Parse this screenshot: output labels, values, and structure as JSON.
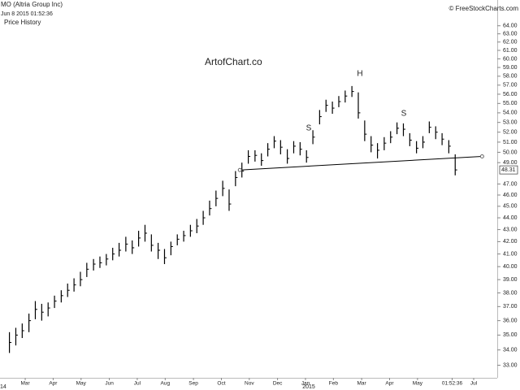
{
  "chart_data": {
    "type": "ohlc",
    "title": "MO (Altria Group Inc)",
    "subtitle": "Jun 8 2015 01:52:36",
    "panel_label": "Price History",
    "source": "© FreeStockCharts.com",
    "watermark": "ArtofChart.co",
    "annotations": [
      "S",
      "H",
      "S"
    ],
    "year_labels": [
      "14",
      "2015"
    ],
    "log_scale": true,
    "color": "#000000",
    "x": [
      2014.12,
      2014.139,
      2014.158,
      2014.178,
      2014.197,
      2014.216,
      2014.235,
      2014.254,
      2014.274,
      2014.293,
      2014.312,
      2014.331,
      2014.35,
      2014.37,
      2014.389,
      2014.408,
      2014.427,
      2014.446,
      2014.466,
      2014.485,
      2014.504,
      2014.523,
      2014.542,
      2014.562,
      2014.581,
      2014.6,
      2014.619,
      2014.638,
      2014.658,
      2014.677,
      2014.696,
      2014.715,
      2014.734,
      2014.754,
      2014.773,
      2014.792,
      2014.811,
      2014.83,
      2014.85,
      2014.869,
      2014.888,
      2014.907,
      2014.926,
      2014.946,
      2014.965,
      2014.984,
      2015.003,
      2015.022,
      2015.042,
      2015.061,
      2015.08,
      2015.099,
      2015.118,
      2015.138,
      2015.157,
      2015.176,
      2015.195,
      2015.214,
      2015.234,
      2015.253,
      2015.272,
      2015.291,
      2015.31,
      2015.33,
      2015.349,
      2015.368,
      2015.387,
      2015.406,
      2015.426,
      2015.445
    ],
    "high": [
      35.2,
      35.5,
      35.8,
      36.5,
      37.4,
      37.2,
      37.3,
      37.8,
      38.2,
      38.7,
      39.1,
      39.6,
      40.3,
      40.6,
      40.8,
      41.0,
      41.5,
      41.9,
      42.4,
      42.1,
      42.9,
      43.4,
      42.6,
      41.9,
      41.4,
      42.0,
      42.6,
      42.9,
      43.4,
      43.9,
      44.6,
      45.5,
      46.4,
      47.3,
      46.5,
      48.2,
      49.0,
      50.2,
      50.2,
      49.9,
      50.9,
      51.6,
      51.2,
      50.3,
      51.1,
      51.0,
      50.2,
      52.2,
      54.3,
      55.4,
      55.2,
      55.8,
      56.4,
      56.9,
      56.2,
      53.2,
      51.6,
      50.9,
      51.5,
      52.1,
      53.0,
      52.9,
      51.9,
      51.1,
      51.6,
      53.1,
      52.6,
      51.9,
      51.2,
      49.8
    ],
    "low": [
      33.8,
      34.3,
      34.8,
      35.2,
      36.1,
      36.0,
      36.3,
      36.9,
      37.3,
      37.7,
      38.1,
      38.5,
      39.2,
      39.7,
      39.9,
      40.1,
      40.5,
      40.8,
      41.2,
      41.0,
      41.6,
      42.0,
      41.2,
      40.6,
      40.2,
      40.9,
      41.7,
      42.0,
      42.4,
      42.7,
      43.4,
      44.2,
      45.0,
      45.9,
      44.6,
      46.8,
      47.6,
      48.9,
      49.1,
      48.7,
      49.6,
      50.4,
      49.8,
      48.9,
      49.9,
      49.7,
      49.0,
      50.8,
      52.8,
      54.1,
      53.9,
      54.6,
      55.1,
      55.7,
      53.4,
      51.1,
      50.0,
      49.4,
      50.2,
      50.9,
      51.8,
      51.6,
      50.6,
      49.9,
      50.4,
      51.9,
      51.3,
      50.7,
      49.9,
      47.8
    ],
    "close": [
      34.5,
      35.0,
      35.3,
      36.0,
      36.8,
      36.6,
      36.9,
      37.4,
      37.8,
      38.2,
      38.6,
      39.0,
      39.8,
      40.2,
      40.3,
      40.6,
      41.0,
      41.3,
      41.8,
      41.5,
      42.3,
      42.7,
      41.7,
      41.3,
      40.7,
      41.6,
      42.2,
      42.5,
      42.9,
      43.3,
      44.0,
      44.8,
      45.7,
      46.6,
      45.2,
      47.6,
      48.2,
      49.6,
      49.7,
      49.2,
      50.3,
      51.1,
      50.5,
      49.4,
      50.6,
      50.3,
      49.5,
      51.5,
      53.6,
      54.8,
      54.5,
      55.2,
      55.8,
      56.3,
      54.0,
      51.8,
      50.7,
      50.2,
      50.9,
      51.5,
      52.4,
      52.3,
      51.2,
      50.4,
      51.0,
      52.5,
      52.0,
      51.3,
      50.6,
      48.31
    ],
    "last_price": 48.31,
    "trendline": {
      "x": [
        2014.805,
        2015.525
      ],
      "y": [
        48.3,
        49.6
      ]
    },
    "xlim": [
      2014.092,
      2015.57
    ],
    "ylim": [
      32.2,
      65.2
    ],
    "xticks": [
      {
        "value": 2014.167,
        "label": "Mar"
      },
      {
        "value": 2014.25,
        "label": "Apr"
      },
      {
        "value": 2014.333,
        "label": "May"
      },
      {
        "value": 2014.417,
        "label": "Jun"
      },
      {
        "value": 2014.5,
        "label": "Jul"
      },
      {
        "value": 2014.583,
        "label": "Aug"
      },
      {
        "value": 2014.667,
        "label": "Sep"
      },
      {
        "value": 2014.75,
        "label": "Oct"
      },
      {
        "value": 2014.833,
        "label": "Nov"
      },
      {
        "value": 2014.917,
        "label": "Dec"
      },
      {
        "value": 2015.0,
        "label": "Jan"
      },
      {
        "value": 2015.083,
        "label": "Feb"
      },
      {
        "value": 2015.167,
        "label": "Mar"
      },
      {
        "value": 2015.25,
        "label": "Apr"
      },
      {
        "value": 2015.333,
        "label": "May"
      },
      {
        "value": 2015.436,
        "label": "01:52:36"
      },
      {
        "value": 2015.5,
        "label": "Jul"
      }
    ],
    "yticks": [
      {
        "value": 33,
        "label": "33.00"
      },
      {
        "value": 34,
        "label": "34.00"
      },
      {
        "value": 35,
        "label": "35.00"
      },
      {
        "value": 36,
        "label": "36.00"
      },
      {
        "value": 37,
        "label": "37.00"
      },
      {
        "value": 38,
        "label": "38.00"
      },
      {
        "value": 39,
        "label": "39.00"
      },
      {
        "value": 40,
        "label": "40.00"
      },
      {
        "value": 41,
        "label": "41.00"
      },
      {
        "value": 42,
        "label": "42.00"
      },
      {
        "value": 43,
        "label": "43.00"
      },
      {
        "value": 44,
        "label": "44.00"
      },
      {
        "value": 45,
        "label": "45.00"
      },
      {
        "value": 46,
        "label": "46.00"
      },
      {
        "value": 47,
        "label": "47.00"
      },
      {
        "value": 49,
        "label": "49.00"
      },
      {
        "value": 50,
        "label": "50.00"
      },
      {
        "value": 51,
        "label": "51.00"
      },
      {
        "value": 52,
        "label": "52.00"
      },
      {
        "value": 53,
        "label": "53.00"
      },
      {
        "value": 54,
        "label": "54.00"
      },
      {
        "value": 55,
        "label": "55.00"
      },
      {
        "value": 56,
        "label": "56.00"
      },
      {
        "value": 57,
        "label": "57.00"
      },
      {
        "value": 58,
        "label": "58.00"
      },
      {
        "value": 59,
        "label": "59.00"
      },
      {
        "value": 60,
        "label": "60.00"
      },
      {
        "value": 61,
        "label": "61.00"
      },
      {
        "value": 62,
        "label": "62.00"
      },
      {
        "value": 63,
        "label": "63.00"
      },
      {
        "value": 64,
        "label": "64.00"
      }
    ]
  }
}
